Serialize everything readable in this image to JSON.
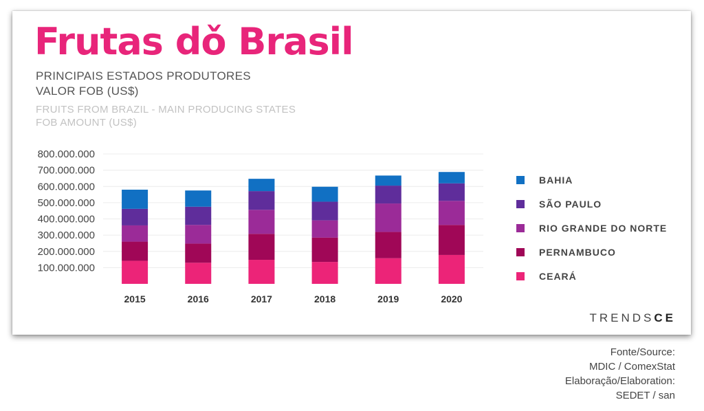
{
  "header": {
    "title": "Frutas dǒ Brasil",
    "subtitle_pt_line1": "PRINCIPAIS ESTADOS PRODUTORES",
    "subtitle_pt_line2": "VALOR FOB (US$)",
    "subtitle_en_line1": "FRUITS FROM BRAZIL - MAIN PRODUCING STATES",
    "subtitle_en_line2": "FOB AMOUNT (US$)"
  },
  "brand": {
    "logo_part1": "TRENDS",
    "logo_part2": "CE"
  },
  "source": {
    "line1": "Fonte/Source:",
    "line2": "MDIC / ComexStat",
    "line3": "Elaboração/Elaboration:",
    "line4": "SEDET / san"
  },
  "chart_data": {
    "type": "bar",
    "stacked": true,
    "categories": [
      "2015",
      "2016",
      "2017",
      "2018",
      "2019",
      "2020"
    ],
    "ylim": [
      0,
      800000000
    ],
    "yticks": [
      100000000,
      200000000,
      300000000,
      400000000,
      500000000,
      600000000,
      700000000,
      800000000
    ],
    "ytick_labels": [
      "100.000.000",
      "200.000.000",
      "300.000.000",
      "400.000.000",
      "500.000.000",
      "600.000.000",
      "700.000.000",
      "800.000.000"
    ],
    "grid": true,
    "legend_position": "right",
    "series": [
      {
        "name": "CEARÁ",
        "color": "#ec2478",
        "values": [
          142000000,
          130000000,
          148000000,
          135000000,
          158000000,
          178000000
        ]
      },
      {
        "name": "PERNAMBUCO",
        "color": "#a00757",
        "values": [
          118000000,
          118000000,
          160000000,
          150000000,
          162000000,
          185000000
        ]
      },
      {
        "name": "RIO GRANDE DO NORTE",
        "color": "#9b2b98",
        "values": [
          100000000,
          115000000,
          148000000,
          106000000,
          175000000,
          148000000
        ]
      },
      {
        "name": "SÃO PAULO",
        "color": "#5f2d9b",
        "values": [
          102000000,
          112000000,
          115000000,
          115000000,
          110000000,
          108000000
        ]
      },
      {
        "name": "BAHIA",
        "color": "#1170c3",
        "values": [
          118000000,
          100000000,
          76000000,
          92000000,
          62000000,
          70000000
        ]
      }
    ]
  }
}
